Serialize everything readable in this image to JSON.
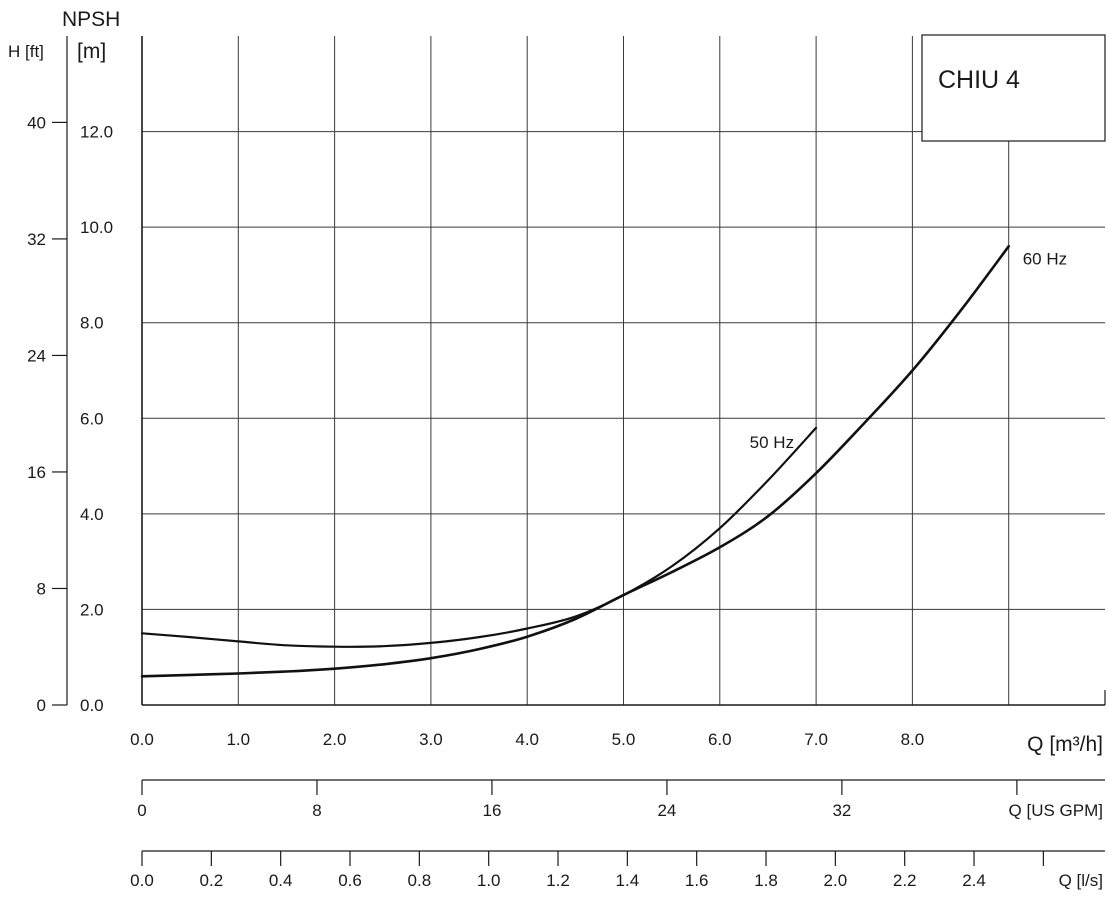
{
  "chart_data": {
    "type": "line",
    "title": "CHIU 4",
    "y_label_top": "NPSH",
    "y_unit_m": "[m]",
    "y_unit_ft": "H [ft]",
    "x_label_m3h": "Q [m³/h]",
    "x_label_gpm": "Q [US GPM]",
    "x_label_ls": "Q [l/s]",
    "xlim": [
      0,
      10
    ],
    "ylim": [
      0,
      14
    ],
    "grid": true,
    "y_ticks_m": [
      "0.0",
      "2.0",
      "4.0",
      "6.0",
      "8.0",
      "10.0",
      "12.0"
    ],
    "y_ticks_ft": [
      "0",
      "8",
      "16",
      "24",
      "32",
      "40"
    ],
    "x_ticks_m3h": [
      "0.0",
      "1.0",
      "2.0",
      "3.0",
      "4.0",
      "5.0",
      "6.0",
      "7.0",
      "8.0"
    ],
    "x_ticks_gpm": [
      "0",
      "8",
      "16",
      "24",
      "32"
    ],
    "x_ticks_ls": [
      "0.0",
      "0.2",
      "0.4",
      "0.6",
      "0.8",
      "1.0",
      "1.2",
      "1.4",
      "1.6",
      "1.8",
      "2.0",
      "2.2",
      "2.4"
    ],
    "series": [
      {
        "name": "50 Hz",
        "x": [
          0,
          0.5,
          1.0,
          1.5,
          2.0,
          2.5,
          3.0,
          3.5,
          4.0,
          4.5,
          5.0,
          5.5,
          6.0,
          6.5,
          7.0
        ],
        "y": [
          1.5,
          1.42,
          1.33,
          1.25,
          1.22,
          1.23,
          1.3,
          1.42,
          1.6,
          1.85,
          2.3,
          2.9,
          3.7,
          4.7,
          5.8
        ]
      },
      {
        "name": "60 Hz",
        "x": [
          0,
          0.5,
          1.0,
          1.5,
          2.0,
          2.5,
          3.0,
          3.5,
          4.0,
          4.5,
          5.0,
          5.5,
          6.0,
          6.5,
          7.0,
          7.5,
          8.0,
          8.5,
          9.0
        ],
        "y": [
          0.6,
          0.63,
          0.66,
          0.7,
          0.76,
          0.85,
          0.98,
          1.17,
          1.43,
          1.8,
          2.3,
          2.78,
          3.3,
          3.95,
          4.85,
          5.9,
          7.0,
          8.25,
          9.6
        ]
      }
    ]
  }
}
